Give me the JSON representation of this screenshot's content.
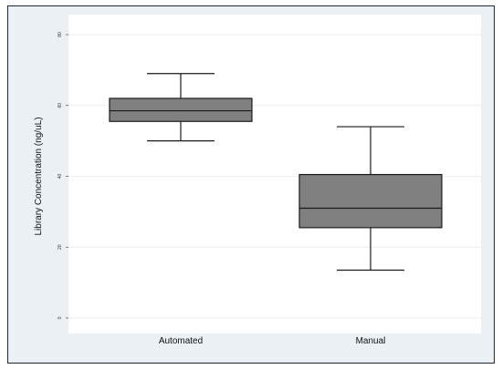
{
  "chart_data": {
    "type": "boxplot",
    "categories": [
      "Automated",
      "Manual"
    ],
    "ylabel": "Library Concentration (ng/uL)",
    "ylim": [
      0,
      80
    ],
    "yticks": [
      0,
      20,
      40,
      60,
      80
    ],
    "grid": true,
    "boxes": [
      {
        "category": "Automated",
        "min": 50,
        "q1": 55.5,
        "median": 58.5,
        "q3": 62,
        "max": 69
      },
      {
        "category": "Manual",
        "min": 13.5,
        "q1": 25.5,
        "median": 31,
        "q3": 40.5,
        "max": 54
      }
    ],
    "colors": {
      "box_fill": "#808080",
      "stroke": "#1a1a1a",
      "plot_bg": "#ffffff",
      "outer_bg": "#eaf0f4",
      "grid": "#e9eef2",
      "border": "#1a2a3a"
    }
  }
}
